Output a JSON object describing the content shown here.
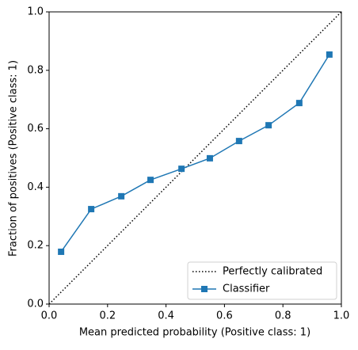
{
  "chart_data": {
    "type": "line",
    "xlabel": "Mean predicted probability (Positive class: 1)",
    "ylabel": "Fraction of positives (Positive class: 1)",
    "series": [
      {
        "name": "Perfectly calibrated",
        "color": "#000000",
        "linestyle": "dotted",
        "marker": "none",
        "x": [
          0,
          1
        ],
        "values": [
          0,
          1
        ]
      },
      {
        "name": "Classifier",
        "color": "#1f77b4",
        "linestyle": "solid",
        "marker": "square",
        "x": [
          0.041,
          0.144,
          0.247,
          0.347,
          0.453,
          0.55,
          0.65,
          0.751,
          0.856,
          0.959
        ],
        "values": [
          0.179,
          0.325,
          0.369,
          0.425,
          0.463,
          0.499,
          0.558,
          0.612,
          0.688,
          0.854
        ]
      }
    ],
    "xlim": [
      0,
      1
    ],
    "ylim": [
      0,
      1
    ],
    "xticks": [
      {
        "value": 0,
        "label": "0.0"
      },
      0.2,
      0.4,
      0.6,
      0.8,
      {
        "value": 1,
        "label": "1.0"
      }
    ],
    "yticks": [
      {
        "value": 0,
        "label": "0.0"
      },
      0.2,
      0.4,
      0.6,
      0.8,
      {
        "value": 1,
        "label": "1.0"
      }
    ],
    "grid": false,
    "legend": "lower right"
  }
}
